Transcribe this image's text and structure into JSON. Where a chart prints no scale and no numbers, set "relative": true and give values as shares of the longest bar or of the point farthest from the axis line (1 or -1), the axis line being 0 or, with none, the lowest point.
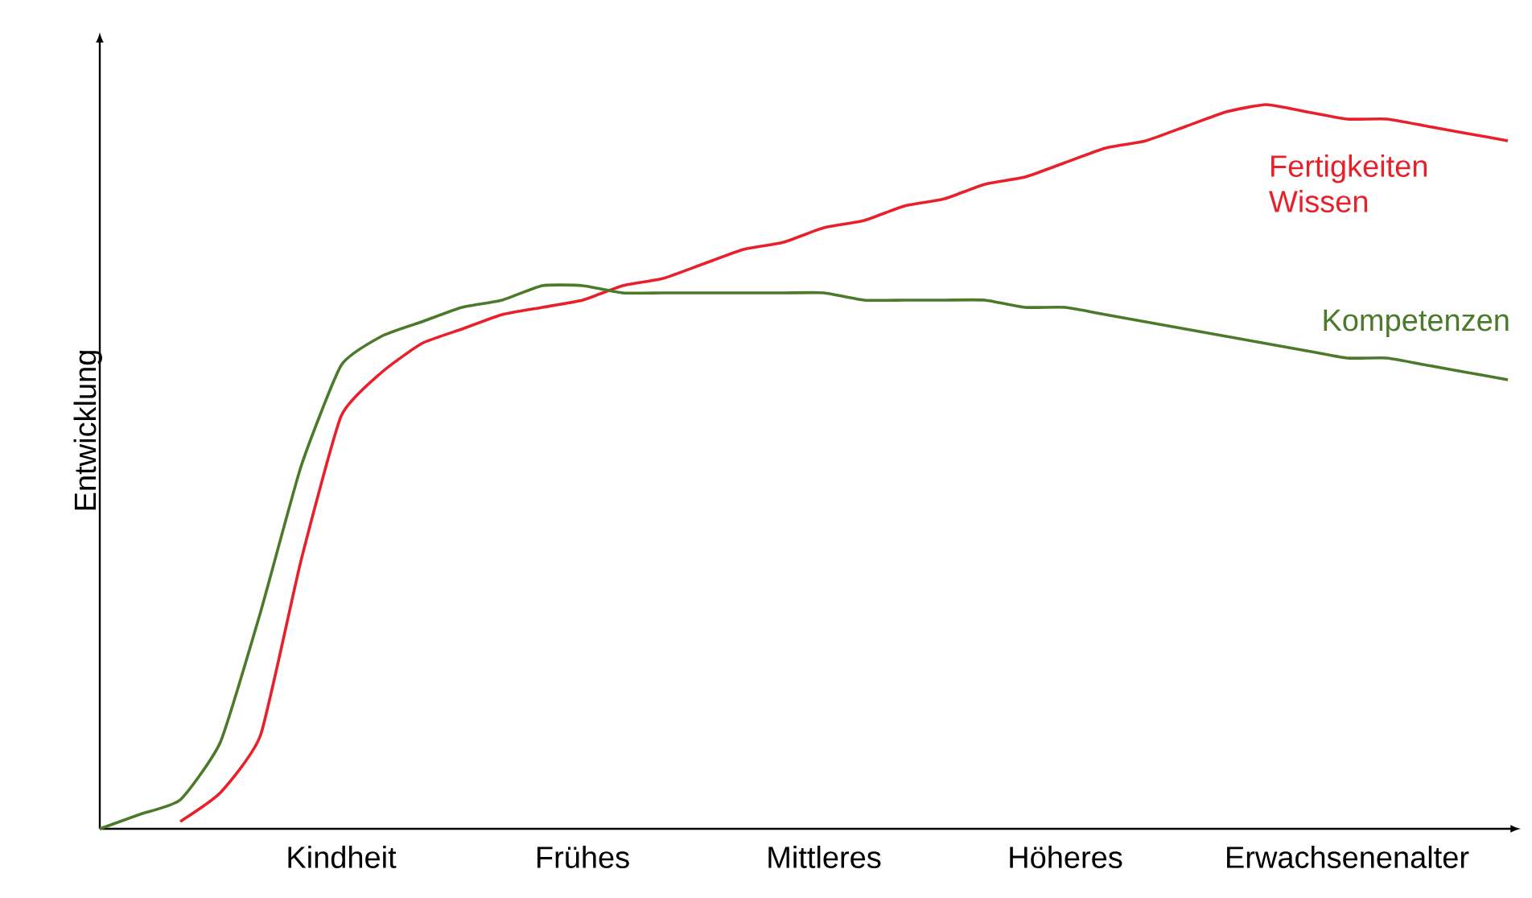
{
  "chart_data": {
    "type": "line",
    "relative": true,
    "ylabel": "Entwicklung",
    "categories": [
      null,
      null,
      null,
      null,
      null,
      null,
      "Kindheit",
      null,
      null,
      null,
      null,
      null,
      "Frühes",
      null,
      null,
      null,
      null,
      null,
      "Mittleres",
      null,
      null,
      null,
      null,
      null,
      "Höheres",
      null,
      null,
      null,
      null,
      null,
      null,
      "Erwachsenenalter",
      null,
      null,
      null,
      null
    ],
    "series": [
      {
        "name": "Fertigkeiten Wissen",
        "color": "#e8202a",
        "values": [
          null,
          null,
          0.01,
          0.05,
          0.13,
          0.37,
          0.57,
          0.63,
          0.67,
          0.69,
          0.71,
          0.72,
          0.73,
          0.75,
          0.76,
          0.78,
          0.8,
          0.81,
          0.83,
          0.84,
          0.86,
          0.87,
          0.89,
          0.9,
          0.92,
          0.94,
          0.95,
          0.97,
          0.99,
          1.0,
          0.99,
          0.98,
          0.98,
          0.97,
          0.96,
          0.95
        ]
      },
      {
        "name": "Kompetenzen",
        "color": "#4a7a2a",
        "values": [
          0,
          0.02,
          0.04,
          0.12,
          0.3,
          0.5,
          0.64,
          0.68,
          0.7,
          0.72,
          0.73,
          0.75,
          0.75,
          0.74,
          0.74,
          0.74,
          0.74,
          0.74,
          0.74,
          0.73,
          0.73,
          0.73,
          0.73,
          0.72,
          0.72,
          0.71,
          0.7,
          0.69,
          0.68,
          0.67,
          0.66,
          0.65,
          0.65,
          0.64,
          0.63,
          0.62
        ]
      }
    ]
  }
}
